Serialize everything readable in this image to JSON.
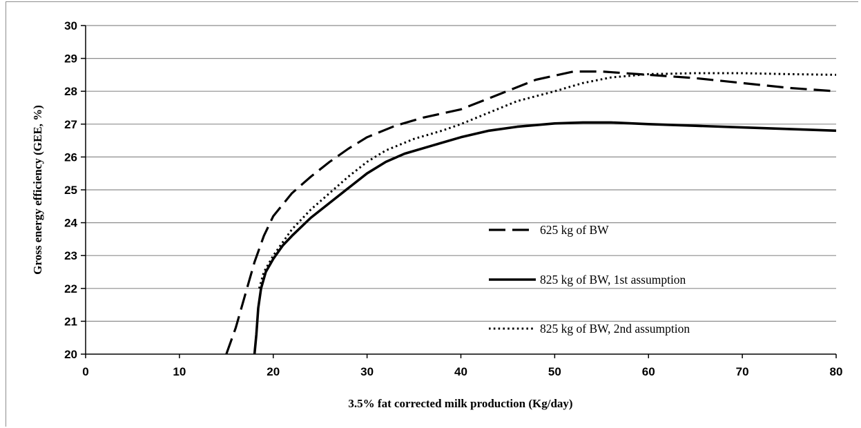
{
  "chart_data": {
    "type": "line",
    "title": "",
    "xlabel": "3.5% fat corrected milk production (Kg/day)",
    "ylabel": "Gross energy efficiency (GEE, %)",
    "xlim": [
      0,
      80
    ],
    "ylim": [
      20,
      30
    ],
    "x_ticks": [
      0,
      10,
      20,
      30,
      40,
      50,
      60,
      70,
      80
    ],
    "y_ticks": [
      20,
      21,
      22,
      23,
      24,
      25,
      26,
      27,
      28,
      29,
      30
    ],
    "grid": "horizontal",
    "legend_position": "center-right",
    "series": [
      {
        "name": "625 kg of BW",
        "style": "dashed",
        "color": "#000000",
        "points": [
          [
            15,
            20
          ],
          [
            16,
            20.8
          ],
          [
            17,
            21.8
          ],
          [
            18,
            22.8
          ],
          [
            19,
            23.6
          ],
          [
            20,
            24.2
          ],
          [
            22,
            24.9
          ],
          [
            24,
            25.4
          ],
          [
            26,
            25.85
          ],
          [
            28,
            26.25
          ],
          [
            30,
            26.6
          ],
          [
            33,
            26.95
          ],
          [
            36,
            27.2
          ],
          [
            40,
            27.45
          ],
          [
            44,
            27.9
          ],
          [
            48,
            28.35
          ],
          [
            52,
            28.6
          ],
          [
            55,
            28.6
          ],
          [
            60,
            28.5
          ],
          [
            65,
            28.4
          ],
          [
            70,
            28.25
          ],
          [
            75,
            28.1
          ],
          [
            80,
            28.0
          ]
        ]
      },
      {
        "name": "825 kg of BW, 1st assumption",
        "style": "solid",
        "color": "#000000",
        "points": [
          [
            18,
            20
          ],
          [
            18.2,
            20.6
          ],
          [
            18.4,
            21.4
          ],
          [
            18.7,
            22.0
          ],
          [
            19.2,
            22.5
          ],
          [
            20,
            22.9
          ],
          [
            21,
            23.3
          ],
          [
            22,
            23.6
          ],
          [
            24,
            24.15
          ],
          [
            26,
            24.6
          ],
          [
            28,
            25.05
          ],
          [
            30,
            25.5
          ],
          [
            32,
            25.85
          ],
          [
            34,
            26.1
          ],
          [
            37,
            26.35
          ],
          [
            40,
            26.6
          ],
          [
            43,
            26.8
          ],
          [
            46,
            26.92
          ],
          [
            50,
            27.02
          ],
          [
            53,
            27.05
          ],
          [
            56,
            27.05
          ],
          [
            60,
            27.0
          ],
          [
            65,
            26.95
          ],
          [
            70,
            26.9
          ],
          [
            75,
            26.85
          ],
          [
            80,
            26.8
          ]
        ]
      },
      {
        "name": "825 kg of BW, 2nd assumption",
        "style": "dotted",
        "color": "#000000",
        "points": [
          [
            18.5,
            22.0
          ],
          [
            19,
            22.5
          ],
          [
            20,
            23.0
          ],
          [
            22,
            23.8
          ],
          [
            24,
            24.4
          ],
          [
            26,
            24.9
          ],
          [
            28,
            25.4
          ],
          [
            30,
            25.85
          ],
          [
            32,
            26.2
          ],
          [
            35,
            26.55
          ],
          [
            38,
            26.8
          ],
          [
            40,
            27.0
          ],
          [
            43,
            27.35
          ],
          [
            46,
            27.7
          ],
          [
            50,
            28.0
          ],
          [
            53,
            28.25
          ],
          [
            56,
            28.42
          ],
          [
            60,
            28.52
          ],
          [
            65,
            28.55
          ],
          [
            70,
            28.55
          ],
          [
            75,
            28.52
          ],
          [
            80,
            28.5
          ]
        ]
      }
    ]
  }
}
